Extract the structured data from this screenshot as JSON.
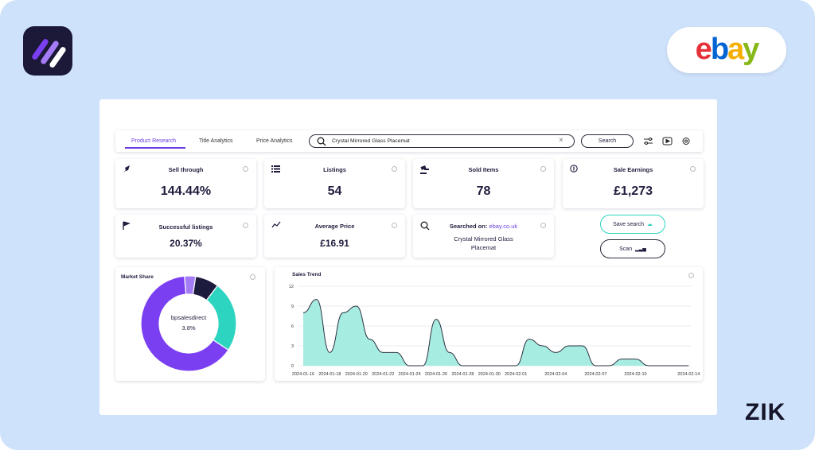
{
  "brand": {
    "partner": "ebay",
    "logo_text": "ZIK"
  },
  "tabs": [
    "Product Research",
    "Title Analytics",
    "Price Analytics"
  ],
  "search": {
    "query": "Crystal Mirrored Glass Placemat",
    "button": "Search"
  },
  "stats": [
    {
      "label": "Sell through",
      "value": "144.44%"
    },
    {
      "label": "Listings",
      "value": "54"
    },
    {
      "label": "Sold Items",
      "value": "78"
    },
    {
      "label": "Sale Earnings",
      "value": "£1,273"
    }
  ],
  "small_stats": [
    {
      "label": "Successful listings",
      "value": "20.37%"
    },
    {
      "label": "Average Price",
      "value": "£16.91"
    }
  ],
  "searched_on": {
    "label": "Searched on:",
    "site": "ebay.co.uk",
    "query": "Crystal Mirrored Glass Placemat"
  },
  "buttons": {
    "save": "Save search",
    "scan": "Scan"
  },
  "chart_data": [
    {
      "type": "pie",
      "title": "Market Share",
      "categories": [
        "bpsalesdirect",
        null,
        null,
        null
      ],
      "values": [
        3.8,
        8,
        24,
        64.2
      ],
      "value_labels": [
        "3.8%",
        null,
        null,
        null
      ],
      "colors": [
        "#a47cf6",
        "#1d1b3d",
        "#2dd4bf",
        "#7b3ff2"
      ]
    },
    {
      "type": "area",
      "title": "Sales Trend",
      "categories": [
        "2024-01-16",
        null,
        "2024-01-18",
        null,
        "2024-01-20",
        null,
        "2024-01-22",
        null,
        "2024-01-24",
        null,
        "2024-01-26",
        null,
        "2024-01-28",
        null,
        "2024-01-30",
        null,
        "2024-02-01",
        null,
        null,
        "2024-02-04",
        null,
        null,
        "2024-02-07",
        null,
        null,
        "2024-02-10",
        null,
        null,
        null,
        "2024-02-14"
      ],
      "values": [
        8,
        10,
        2,
        8,
        9,
        4,
        2,
        2,
        0,
        0,
        7,
        2,
        0,
        0,
        0,
        0,
        0,
        4,
        3,
        2,
        3,
        3,
        0,
        0,
        1,
        1,
        0,
        0,
        0,
        0
      ],
      "color": "#2d3142",
      "fill": "#a6ece0",
      "ylim": [
        0,
        12
      ],
      "yticks": [
        0,
        3,
        6,
        9,
        12
      ],
      "grid": true
    }
  ]
}
